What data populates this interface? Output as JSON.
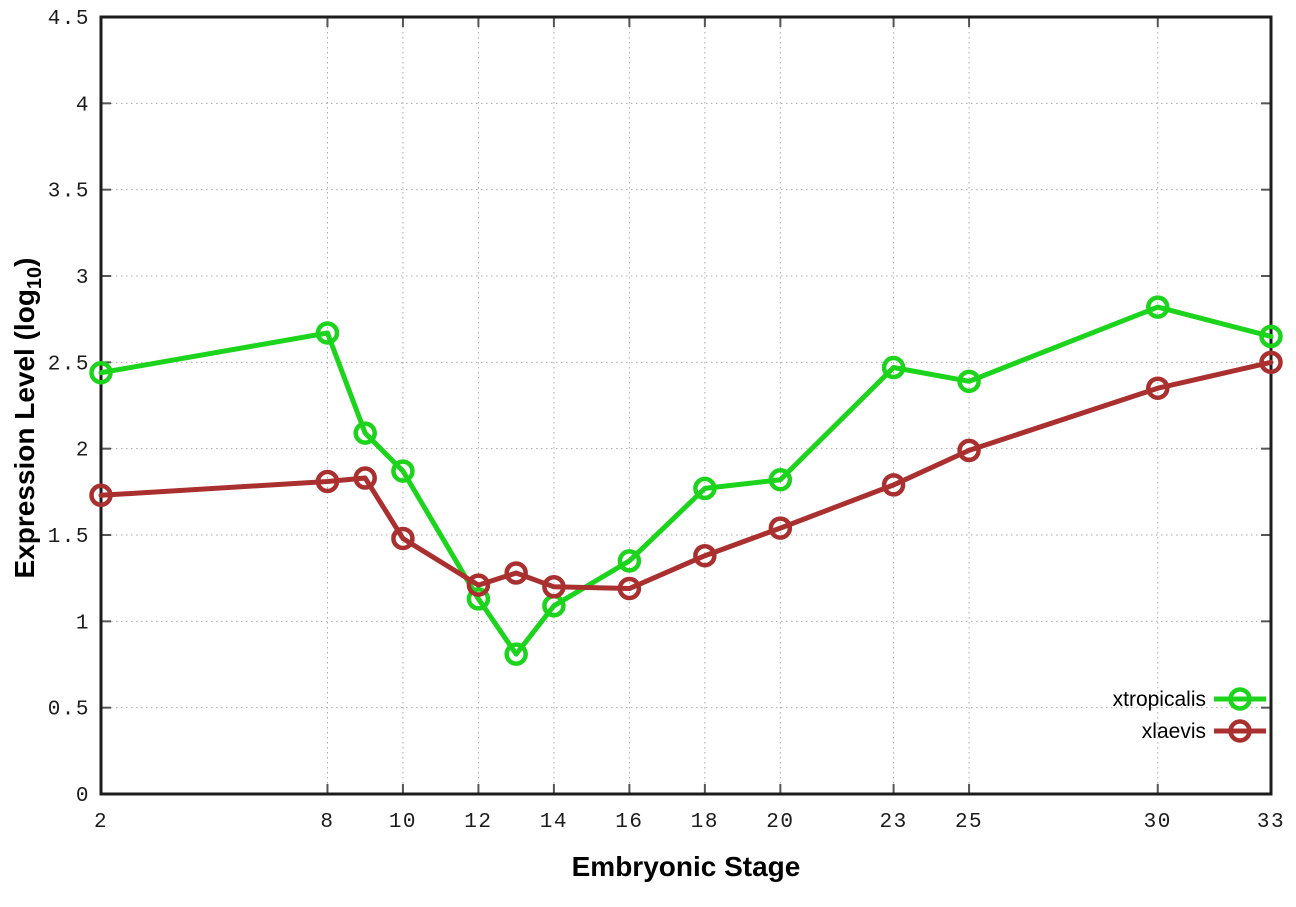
{
  "chart_data": {
    "type": "line",
    "title": "",
    "xlabel": "Embryonic Stage",
    "ylabel": "Expression Level (log10)",
    "ylabel_parts": {
      "pre": "Expression Level (log",
      "sub": "10",
      "post": ")"
    },
    "xlim": [
      2,
      33
    ],
    "ylim": [
      0,
      4.5
    ],
    "x_ticks": [
      2,
      8,
      10,
      12,
      14,
      16,
      18,
      20,
      23,
      25,
      30,
      33
    ],
    "y_ticks": [
      0,
      0.5,
      1,
      1.5,
      2,
      2.5,
      3,
      3.5,
      4,
      4.5
    ],
    "grid": true,
    "legend_position": "inside-bottom-right",
    "x": [
      2,
      8,
      9,
      10,
      12,
      13,
      14,
      16,
      18,
      20,
      23,
      25,
      30,
      33
    ],
    "series": [
      {
        "name": "xtropicalis",
        "color": "#1bd41b",
        "marker": "open-circle",
        "values": [
          2.44,
          2.67,
          2.09,
          1.87,
          1.13,
          0.81,
          1.09,
          1.35,
          1.77,
          1.82,
          2.47,
          2.39,
          2.82,
          2.65
        ]
      },
      {
        "name": "xlaevis",
        "color": "#aa3030",
        "marker": "open-circle",
        "values": [
          1.73,
          1.81,
          1.83,
          1.48,
          1.21,
          1.28,
          1.2,
          1.19,
          1.38,
          1.54,
          1.79,
          1.99,
          2.35,
          2.5
        ]
      }
    ]
  },
  "colors": {
    "background": "#ffffff",
    "border": "#1c1c1c",
    "grid": "#ababab",
    "tick": "#555555",
    "text": "#000000"
  }
}
